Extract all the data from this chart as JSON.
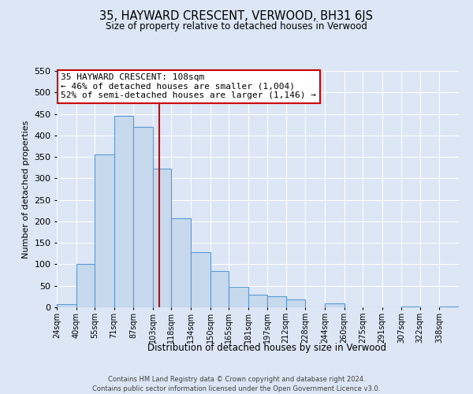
{
  "title": "35, HAYWARD CRESCENT, VERWOOD, BH31 6JS",
  "subtitle": "Size of property relative to detached houses in Verwood",
  "xlabel": "Distribution of detached houses by size in Verwood",
  "ylabel": "Number of detached properties",
  "bin_labels": [
    "24sqm",
    "40sqm",
    "55sqm",
    "71sqm",
    "87sqm",
    "103sqm",
    "118sqm",
    "134sqm",
    "150sqm",
    "165sqm",
    "181sqm",
    "197sqm",
    "212sqm",
    "228sqm",
    "244sqm",
    "260sqm",
    "275sqm",
    "291sqm",
    "307sqm",
    "322sqm",
    "338sqm"
  ],
  "bin_edges": [
    24,
    40,
    55,
    71,
    87,
    103,
    118,
    134,
    150,
    165,
    181,
    197,
    212,
    228,
    244,
    260,
    275,
    291,
    307,
    322,
    338,
    354
  ],
  "counts": [
    7,
    100,
    355,
    445,
    420,
    323,
    207,
    129,
    85,
    48,
    29,
    25,
    19,
    0,
    9,
    0,
    0,
    0,
    2,
    0,
    2
  ],
  "bar_color": "#c7d9ed",
  "bar_edge_color": "#5b9bd5",
  "vline_x": 108,
  "vline_color": "#cc0000",
  "ylim": [
    0,
    550
  ],
  "yticks": [
    0,
    50,
    100,
    150,
    200,
    250,
    300,
    350,
    400,
    450,
    500,
    550
  ],
  "annotation_text": "35 HAYWARD CRESCENT: 108sqm\n← 46% of detached houses are smaller (1,004)\n52% of semi-detached houses are larger (1,146) →",
  "annotation_box_color": "#ffffff",
  "annotation_box_edge_color": "#cc0000",
  "footer_line1": "Contains HM Land Registry data © Crown copyright and database right 2024.",
  "footer_line2": "Contains public sector information licensed under the Open Government Licence v3.0.",
  "background_color": "#dce6f5",
  "plot_bg_color": "#dce6f5",
  "grid_color": "#ffffff"
}
